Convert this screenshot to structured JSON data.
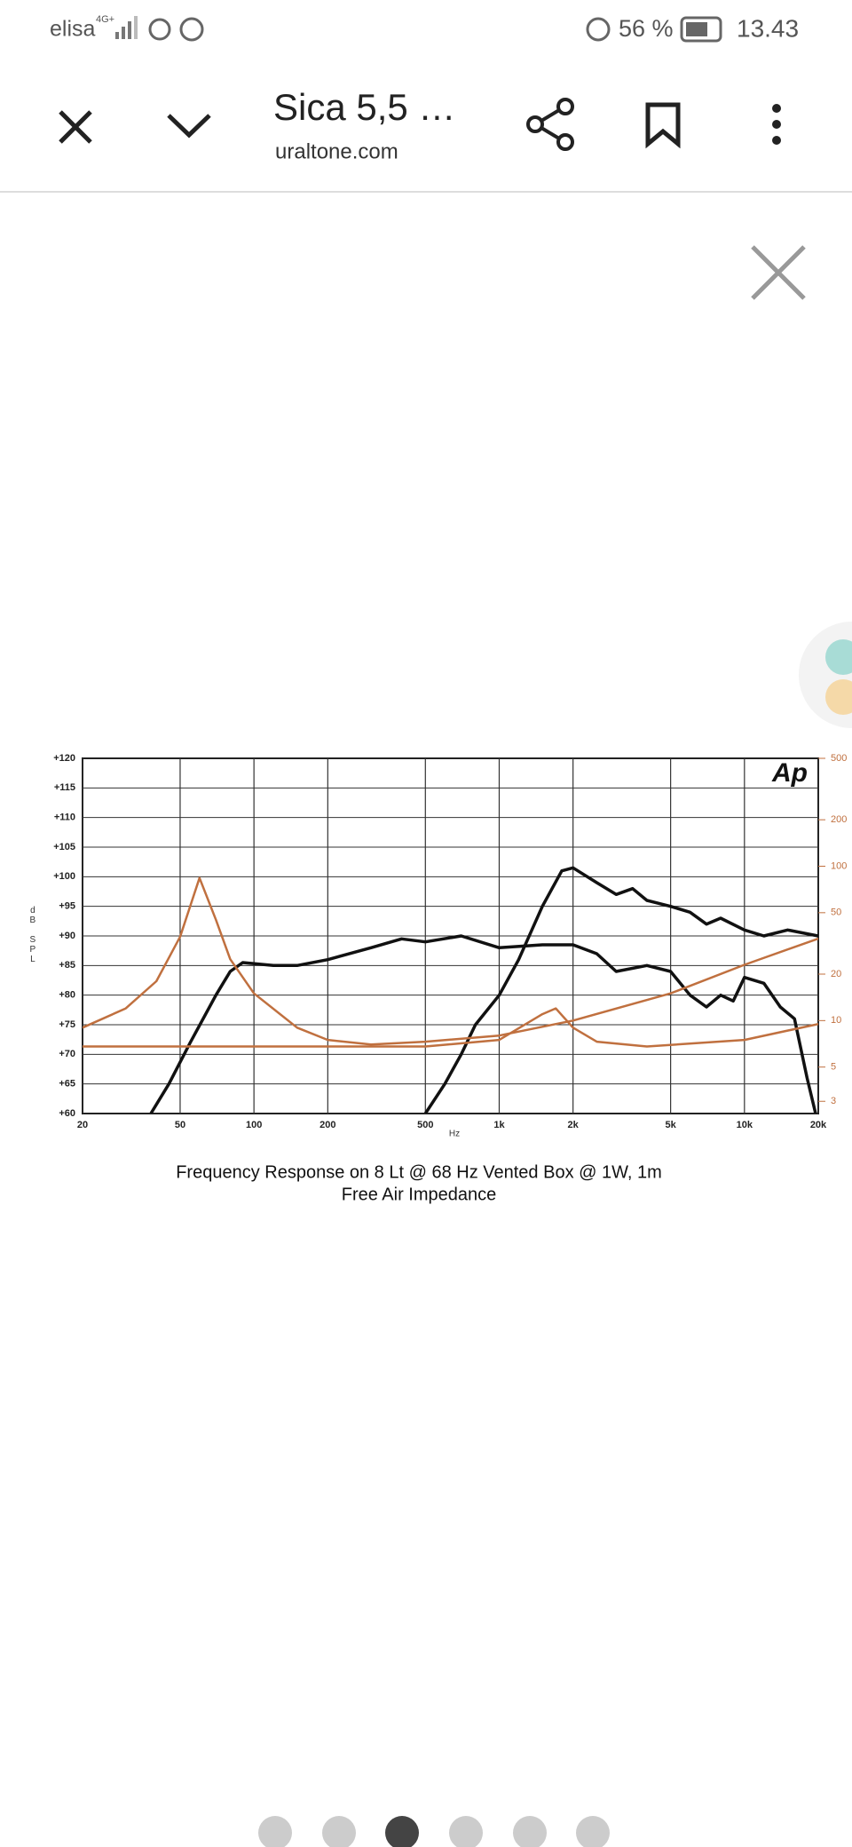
{
  "status_bar": {
    "carrier": "elisa",
    "network": "4G+",
    "battery": "56 %",
    "time": "13.43"
  },
  "toolbar": {
    "title": "Sica 5,5 …",
    "url": "uraltone.com"
  },
  "chart_data": {
    "type": "line",
    "logo": "Ap",
    "title": "Frequency Response on 8 Lt @ 68 Hz Vented Box @ 1W, 1m",
    "subtitle": "Free Air Impedance",
    "x_label": "Hz",
    "y_label": "dB SPL",
    "xscale": "log",
    "y2scale": "log",
    "grid": true,
    "xlim": [
      20,
      20000
    ],
    "xticks": [
      20,
      50,
      100,
      200,
      500,
      {
        "value": 1000,
        "label": "1k"
      },
      {
        "value": 2000,
        "label": "2k"
      },
      {
        "value": 5000,
        "label": "5k"
      },
      {
        "value": 10000,
        "label": "10k"
      },
      {
        "value": 20000,
        "label": "20k"
      }
    ],
    "ylim": [
      60,
      120
    ],
    "yticks": [
      {
        "value": 60,
        "label": "+60"
      },
      {
        "value": 65,
        "label": "+65"
      },
      {
        "value": 70,
        "label": "+70"
      },
      {
        "value": 75,
        "label": "+75"
      },
      {
        "value": 80,
        "label": "+80"
      },
      {
        "value": 85,
        "label": "+85"
      },
      {
        "value": 90,
        "label": "+90"
      },
      {
        "value": 95,
        "label": "+95"
      },
      {
        "value": 100,
        "label": "+100"
      },
      {
        "value": 105,
        "label": "+105"
      },
      {
        "value": 110,
        "label": "+110"
      },
      {
        "value": 115,
        "label": "+115"
      },
      {
        "value": 120,
        "label": "+120"
      }
    ],
    "y2lim": [
      2.5,
      500
    ],
    "y2ticks": [
      3,
      5,
      10,
      20,
      50,
      100,
      200,
      500
    ],
    "series": [
      {
        "color": "#111111",
        "x": [
          38,
          45,
          55,
          70,
          80,
          90,
          120,
          150,
          200,
          300,
          400,
          500,
          700,
          1000,
          1500,
          2000,
          2500,
          3000,
          4000,
          5000,
          6000,
          7000,
          8000,
          9000,
          10000,
          12000,
          14000,
          16000,
          18000,
          19500
        ],
        "values": [
          60,
          65,
          72,
          80,
          84,
          85.5,
          85,
          85,
          86,
          88,
          89.5,
          89,
          90,
          88,
          88.5,
          88.5,
          87,
          84,
          85,
          84,
          80,
          78,
          80,
          79,
          83,
          82,
          78,
          76,
          66,
          60
        ]
      },
      {
        "color": "#111111",
        "x": [
          500,
          600,
          700,
          800,
          1000,
          1200,
          1500,
          1800,
          2000,
          2500,
          3000,
          3500,
          4000,
          5000,
          6000,
          7000,
          8000,
          10000,
          12000,
          15000,
          20000
        ],
        "values": [
          60,
          65,
          70,
          75,
          80,
          86,
          95,
          101,
          101.5,
          99,
          97,
          98,
          96,
          95,
          94,
          92,
          93,
          91,
          90,
          91,
          90
        ]
      },
      {
        "color": "#c0703f",
        "axis": "y2",
        "x": [
          20,
          30,
          40,
          50,
          60,
          70,
          80,
          100,
          150,
          200,
          300,
          500,
          1000,
          2000,
          5000,
          10000,
          20000
        ],
        "values": [
          9,
          12,
          18,
          35,
          84,
          45,
          25,
          15,
          9,
          7.5,
          7,
          7.3,
          8,
          10,
          15,
          23,
          34
        ]
      },
      {
        "color": "#c0703f",
        "axis": "y2",
        "x": [
          20,
          500,
          1000,
          1500,
          1700,
          2000,
          2500,
          4000,
          10000,
          20000
        ],
        "values": [
          6.8,
          6.8,
          7.5,
          11,
          12,
          9,
          7.3,
          6.8,
          7.5,
          9.5
        ]
      }
    ]
  }
}
